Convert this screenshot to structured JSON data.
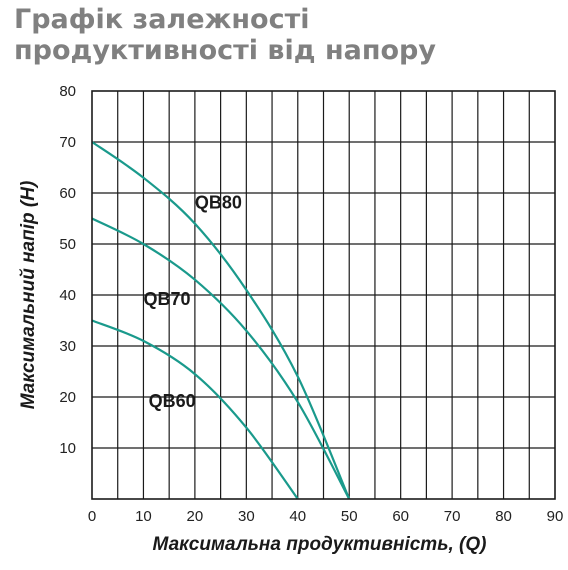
{
  "title": "Графік залежності продуктивності від напору",
  "chart_data": {
    "type": "line",
    "title": "Графік залежності продуктивності від напору",
    "xlabel": "Максимальна продуктивність, (Q)",
    "ylabel": "Максимальний напір (H)",
    "xlim": [
      0,
      90
    ],
    "ylim": [
      0,
      80
    ],
    "x_ticks": [
      0,
      10,
      20,
      30,
      40,
      50,
      60,
      70,
      80,
      90
    ],
    "y_ticks": [
      10,
      20,
      30,
      40,
      50,
      60,
      70,
      80
    ],
    "grid": true,
    "line_color": "#1a9a8c",
    "series": [
      {
        "name": "QB80",
        "x": [
          0,
          10,
          20,
          30,
          40,
          50
        ],
        "y": [
          70,
          63,
          54,
          41,
          24,
          0
        ]
      },
      {
        "name": "QB70",
        "x": [
          0,
          10,
          20,
          30,
          40,
          50
        ],
        "y": [
          55,
          50,
          43,
          33,
          19,
          0
        ]
      },
      {
        "name": "QB60",
        "x": [
          0,
          10,
          20,
          30,
          40
        ],
        "y": [
          35,
          31,
          24.5,
          14,
          0
        ]
      }
    ]
  }
}
